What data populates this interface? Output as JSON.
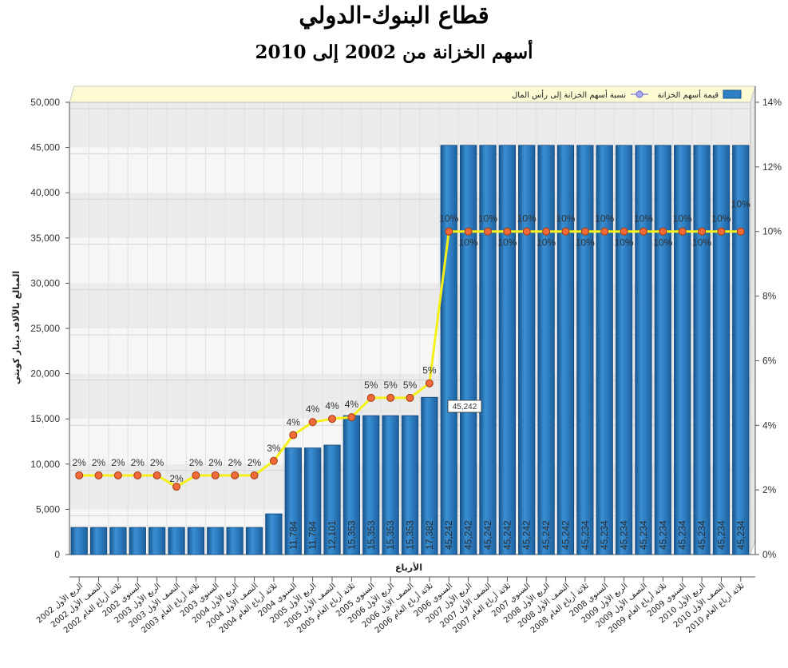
{
  "title": "قطاع البنوك-الدولي",
  "subtitle": "أسهم الخزانة من 2002 إلى 2010",
  "tooltip": "45,242",
  "colors": {
    "bar": "#2f7fc3",
    "bar_dark": "#17558f",
    "line": "#f5f018",
    "marker": "#f06a3a",
    "legend_bg": "#fdfbd4",
    "band": "#e6e6e6"
  },
  "chart_data": {
    "type": "bar",
    "xlabel": "الأرباع",
    "ylabel": "المبالغ بالآلاف دينار كويتي",
    "ylim": [
      0,
      50000
    ],
    "y2lim": [
      0,
      14
    ],
    "yticks": [
      "50,000",
      "45,000",
      "40,000",
      "35,000",
      "30,000",
      "25,000",
      "20,000",
      "15,000",
      "10,000",
      "5,000",
      "0"
    ],
    "y2ticks": [
      "14%",
      "12%",
      "10%",
      "8%",
      "6%",
      "4%",
      "2%",
      "0%"
    ],
    "legend": {
      "bar": "قيمة أسهم الخزانة",
      "line": "نسبة أسهم الخزانة إلى رأس المال",
      "position": "top"
    },
    "categories": [
      "الربع الأول 2002",
      "النصف الأول 2002",
      "ثلاثة أرباع العام 2002",
      "السنوي 2002",
      "الربع الأول 2003",
      "النصف الأول 2003",
      "ثلاثة أرباع العام 2003",
      "السنوي 2003",
      "الربع الأول 2004",
      "النصف الأول 2004",
      "ثلاثة أرباع العام 2004",
      "السنوي 2004",
      "الربع الأول 2005",
      "النصف الأول 2005",
      "ثلاثة أرباع العام 2005",
      "السنوي 2005",
      "الربع الأول 2006",
      "النصف الأول 2006",
      "ثلاثة أرباع العام 2006",
      "السنوي 2006",
      "الربع الأول 2007",
      "النصف الأول 2007",
      "ثلاثة أرباع العام 2007",
      "السنوي 2007",
      "الربع الأول 2008",
      "النصف الأول 2008",
      "ثلاثة أرباع العام 2008",
      "السنوي 2008",
      "الربع الأول 2009",
      "النصف الأول 2009",
      "ثلاثة أرباع العام 2009",
      "السنوي 2009",
      "الربع الأول 2010",
      "النصف الأول 2010",
      "ثلاثة أرباع العام 2010"
    ],
    "series": [
      {
        "name": "قيمة أسهم الخزانة",
        "type": "bar",
        "values": [
          3000,
          3000,
          3000,
          3000,
          3000,
          3000,
          3000,
          3000,
          3000,
          3000,
          4500,
          11784,
          11784,
          12101,
          15353,
          15353,
          15353,
          15353,
          17382,
          45242,
          45242,
          45242,
          45242,
          45242,
          45242,
          45242,
          45234,
          45234,
          45234,
          45234,
          45234,
          45234,
          45234,
          45234,
          45234
        ],
        "data_labels": [
          "",
          "",
          "",
          "",
          "",
          "",
          "",
          "",
          "",
          "",
          "",
          "11,784",
          "11,784",
          "12,101",
          "15,353",
          "15,353",
          "15,353",
          "15,353",
          "17,382",
          "45,242",
          "45,242",
          "45,242",
          "45,242",
          "45,242",
          "45,242",
          "45,242",
          "45,234",
          "45,234",
          "45,234",
          "45,234",
          "45,234",
          "45,234",
          "45,234",
          "45,234",
          "45,234"
        ]
      },
      {
        "name": "نسبة أسهم الخزانة إلى رأس المال",
        "type": "line",
        "axis": "right",
        "values": [
          2.45,
          2.45,
          2.45,
          2.45,
          2.45,
          2.1,
          2.45,
          2.45,
          2.45,
          2.45,
          2.9,
          3.7,
          4.1,
          4.2,
          4.25,
          4.85,
          4.85,
          4.85,
          5.3,
          10,
          10,
          10,
          10,
          10,
          10,
          10,
          10,
          10,
          10,
          10,
          10,
          10,
          10,
          10,
          10
        ],
        "data_labels": [
          "2%",
          "2%",
          "2%",
          "2%",
          "2%",
          "2%",
          "2%",
          "2%",
          "2%",
          "2%",
          "3%",
          "4%",
          "4%",
          "4%",
          "4%",
          "5%",
          "5%",
          "5%",
          "5%",
          "10%",
          "10%",
          "10%",
          "10%",
          "10%",
          "10%",
          "10%",
          "10%",
          "10%",
          "10%",
          "10%",
          "10%",
          "10%",
          "10%",
          "10%",
          "10%"
        ]
      }
    ]
  }
}
